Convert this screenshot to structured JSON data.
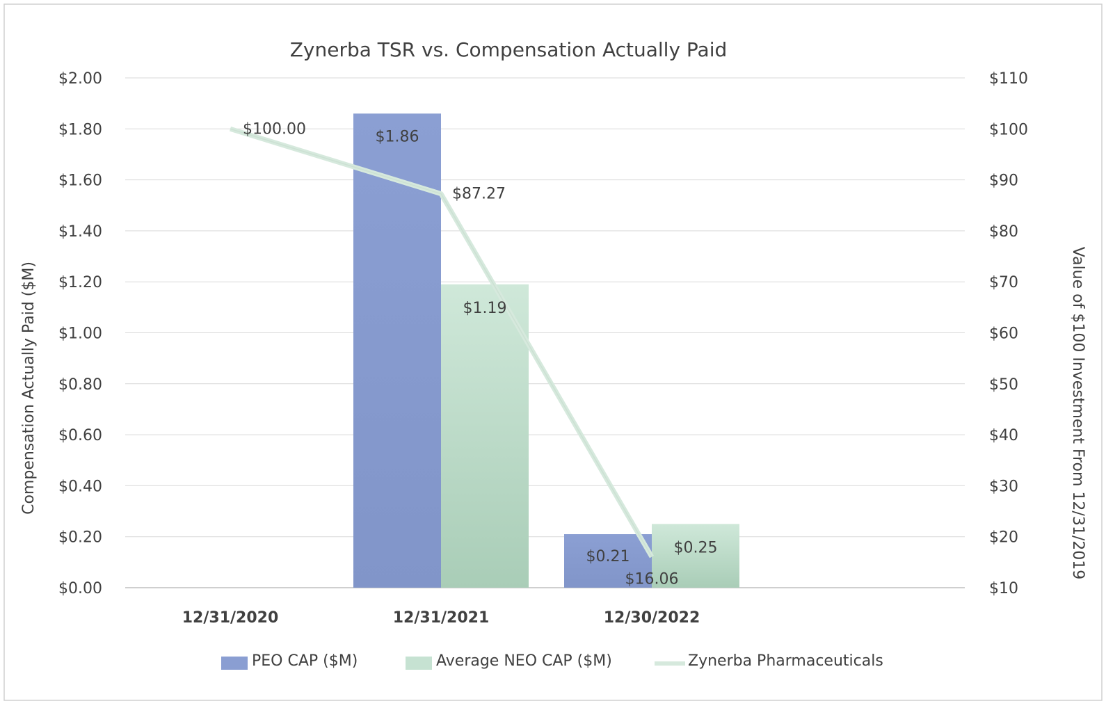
{
  "chart_data": {
    "type": "bar",
    "title": "Zynerba TSR vs. Compensation Actually Paid",
    "categories": [
      "12/31/2020",
      "12/31/2021",
      "12/30/2022"
    ],
    "ylabel": "Compensation Actually Paid ($M)",
    "y2label": "Value of $100 Investment From 12/31/2019",
    "ylim": [
      0,
      2.0
    ],
    "y2lim": [
      10,
      110
    ],
    "yticks": [
      "$0.00",
      "$0.20",
      "$0.40",
      "$0.60",
      "$0.80",
      "$1.00",
      "$1.20",
      "$1.40",
      "$1.60",
      "$1.80",
      "$2.00"
    ],
    "y2ticks": [
      "$10",
      "$20",
      "$30",
      "$40",
      "$50",
      "$60",
      "$70",
      "$80",
      "$90",
      "$100",
      "$110"
    ],
    "series": [
      {
        "name": "PEO CAP ($M)",
        "type": "bar",
        "axis": "left",
        "color": "#8a9ed2",
        "values": [
          null,
          1.86,
          0.21
        ],
        "labels": [
          "",
          "$1.86",
          "$0.21"
        ]
      },
      {
        "name": "Average NEO CAP ($M)",
        "type": "bar",
        "axis": "left",
        "color": "#c6e2d2",
        "values": [
          null,
          1.19,
          0.25
        ],
        "labels": [
          "",
          "$1.19",
          "$0.25"
        ]
      },
      {
        "name": "Zynerba Pharmaceuticals",
        "type": "line",
        "axis": "right",
        "color": "#d4e8dc",
        "values": [
          100.0,
          87.27,
          16.06
        ],
        "labels": [
          "$100.00",
          "$87.27",
          "$16.06"
        ]
      }
    ],
    "legend_position": "bottom",
    "grid": true
  }
}
